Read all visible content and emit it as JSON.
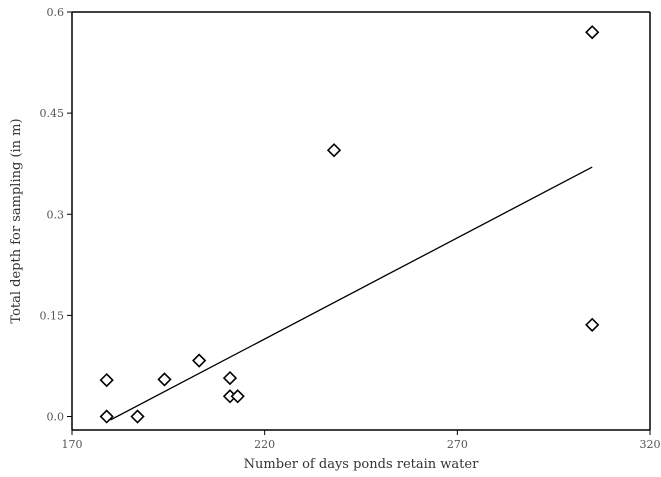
{
  "chart_data": {
    "type": "scatter",
    "title": "",
    "xlabel": "Number of days ponds retain water",
    "ylabel": "Total depth for sampling (in m)",
    "xlim": [
      170,
      320
    ],
    "ylim": [
      -0.02,
      0.6
    ],
    "x_ticks": [
      170,
      220,
      270,
      320
    ],
    "x_tick_labels": [
      "170",
      "220",
      "270",
      "320"
    ],
    "y_ticks": [
      0.0,
      0.15,
      0.3,
      0.45,
      0.6
    ],
    "y_tick_labels": [
      "0.0",
      "0.15",
      "0.3",
      "0.45",
      "0.6"
    ],
    "grid": false,
    "legend": "none",
    "points": [
      {
        "x": 179,
        "y": 0.0
      },
      {
        "x": 179,
        "y": 0.054
      },
      {
        "x": 187,
        "y": 0.0
      },
      {
        "x": 194,
        "y": 0.055
      },
      {
        "x": 203,
        "y": 0.083
      },
      {
        "x": 211,
        "y": 0.057
      },
      {
        "x": 211,
        "y": 0.03
      },
      {
        "x": 213,
        "y": 0.03
      },
      {
        "x": 238,
        "y": 0.395
      },
      {
        "x": 305,
        "y": 0.57
      },
      {
        "x": 305,
        "y": 0.136
      }
    ],
    "trendline": {
      "x": [
        180,
        305
      ],
      "y": [
        -0.005,
        0.37
      ]
    }
  }
}
